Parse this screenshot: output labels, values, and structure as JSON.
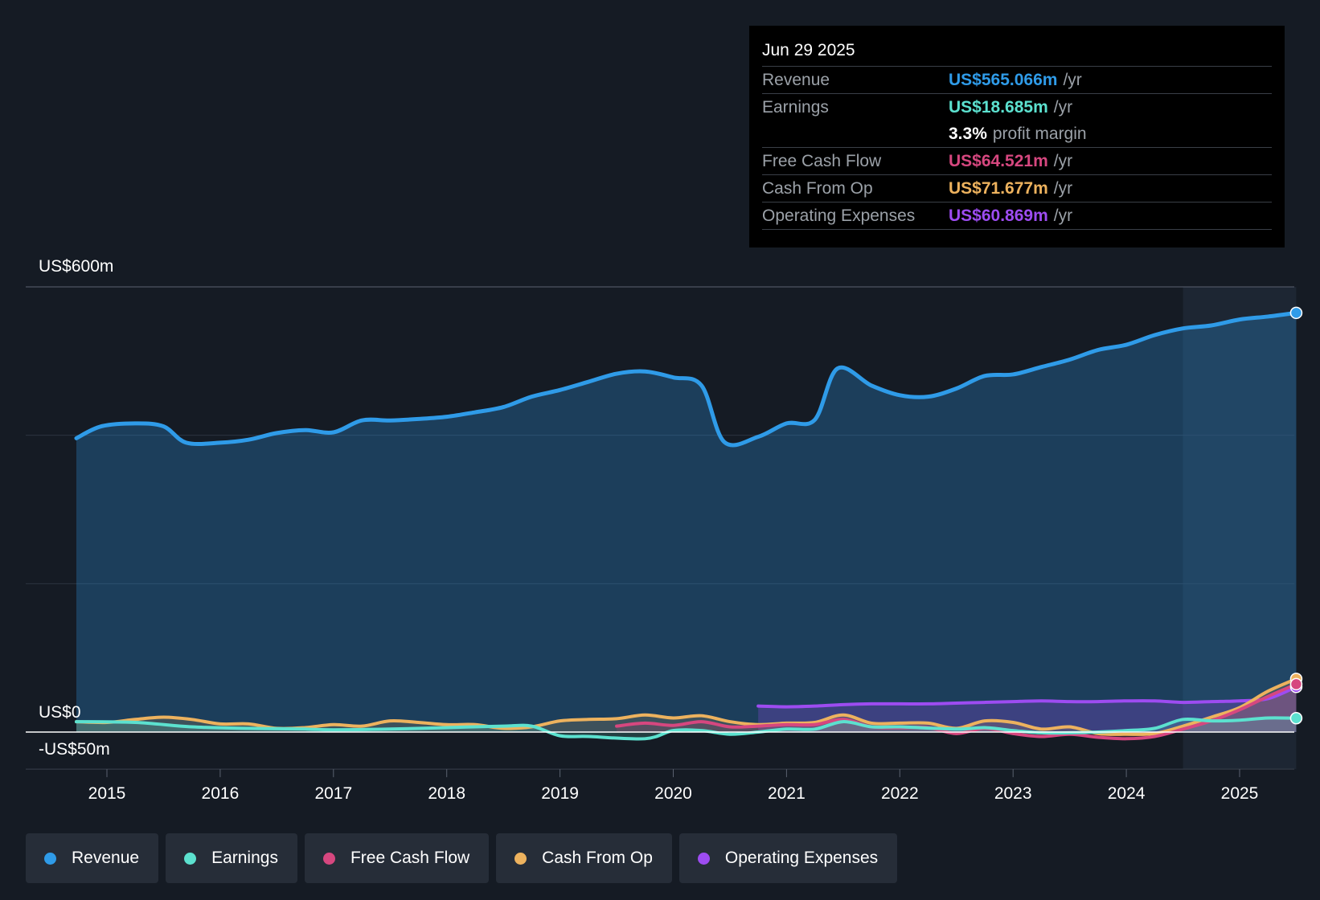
{
  "tooltip": {
    "date": "Jun 29 2025",
    "rows": [
      {
        "label": "Revenue",
        "value": "US$565.066m",
        "unit": "/yr",
        "color": "#2f9be8"
      },
      {
        "label": "Earnings",
        "value": "US$18.685m",
        "unit": "/yr",
        "color": "#5ce1cf"
      },
      {
        "label": "",
        "value": "3.3%",
        "unit": "profit margin",
        "color": "#ffffff"
      },
      {
        "label": "Free Cash Flow",
        "value": "US$64.521m",
        "unit": "/yr",
        "color": "#d6477f"
      },
      {
        "label": "Cash From Op",
        "value": "US$71.677m",
        "unit": "/yr",
        "color": "#edb25e"
      },
      {
        "label": "Operating Expenses",
        "value": "US$60.869m",
        "unit": "/yr",
        "color": "#9d4cf1"
      }
    ]
  },
  "legend": [
    {
      "label": "Revenue",
      "color": "#2f9be8"
    },
    {
      "label": "Earnings",
      "color": "#5ce1cf"
    },
    {
      "label": "Free Cash Flow",
      "color": "#d6477f"
    },
    {
      "label": "Cash From Op",
      "color": "#edb25e"
    },
    {
      "label": "Operating Expenses",
      "color": "#9d4cf1"
    }
  ],
  "chart_data": {
    "type": "line",
    "title": "",
    "y_tick_labels": {
      "top": "US$600m",
      "zero": "US$0",
      "bottom": "-US$50m"
    },
    "ylim": [
      -50,
      600
    ],
    "xlim": [
      2014.73,
      2025.5
    ],
    "forecast_shade_start": 2024.5,
    "x_tick_labels": [
      "2015",
      "2016",
      "2017",
      "2018",
      "2019",
      "2020",
      "2021",
      "2022",
      "2023",
      "2024",
      "2025"
    ],
    "series": [
      {
        "name": "Revenue",
        "color": "#2f9be8",
        "points": [
          [
            2014.73,
            396
          ],
          [
            2014.95,
            412
          ],
          [
            2015.25,
            416
          ],
          [
            2015.5,
            412
          ],
          [
            2015.7,
            390
          ],
          [
            2016.0,
            390
          ],
          [
            2016.25,
            394
          ],
          [
            2016.5,
            403
          ],
          [
            2016.75,
            407
          ],
          [
            2017.0,
            404
          ],
          [
            2017.25,
            420
          ],
          [
            2017.5,
            420
          ],
          [
            2017.75,
            422
          ],
          [
            2018.0,
            425
          ],
          [
            2018.25,
            431
          ],
          [
            2018.5,
            438
          ],
          [
            2018.75,
            452
          ],
          [
            2019.0,
            461
          ],
          [
            2019.25,
            472
          ],
          [
            2019.5,
            483
          ],
          [
            2019.75,
            486
          ],
          [
            2020.0,
            478
          ],
          [
            2020.25,
            467
          ],
          [
            2020.45,
            391
          ],
          [
            2020.75,
            398
          ],
          [
            2021.0,
            416
          ],
          [
            2021.25,
            421
          ],
          [
            2021.45,
            490
          ],
          [
            2021.75,
            467
          ],
          [
            2022.0,
            454
          ],
          [
            2022.25,
            452
          ],
          [
            2022.5,
            463
          ],
          [
            2022.75,
            480
          ],
          [
            2023.0,
            482
          ],
          [
            2023.25,
            492
          ],
          [
            2023.5,
            502
          ],
          [
            2023.75,
            515
          ],
          [
            2024.0,
            522
          ],
          [
            2024.25,
            535
          ],
          [
            2024.5,
            544
          ],
          [
            2024.75,
            548
          ],
          [
            2025.0,
            556
          ],
          [
            2025.25,
            560
          ],
          [
            2025.5,
            565
          ]
        ]
      },
      {
        "name": "Earnings",
        "color": "#5ce1cf",
        "points": [
          [
            2014.73,
            14
          ],
          [
            2015.25,
            13
          ],
          [
            2015.75,
            7
          ],
          [
            2016.25,
            5
          ],
          [
            2016.75,
            4
          ],
          [
            2017.0,
            3
          ],
          [
            2017.5,
            4
          ],
          [
            2018.0,
            6
          ],
          [
            2018.5,
            8
          ],
          [
            2018.75,
            8
          ],
          [
            2019.0,
            -5
          ],
          [
            2019.25,
            -6
          ],
          [
            2019.75,
            -9
          ],
          [
            2020.0,
            2
          ],
          [
            2020.25,
            2
          ],
          [
            2020.5,
            -3
          ],
          [
            2020.75,
            0
          ],
          [
            2021.0,
            4
          ],
          [
            2021.25,
            4
          ],
          [
            2021.5,
            14
          ],
          [
            2021.75,
            7
          ],
          [
            2022.0,
            7
          ],
          [
            2022.5,
            4
          ],
          [
            2022.75,
            6
          ],
          [
            2023.0,
            2
          ],
          [
            2023.25,
            -1
          ],
          [
            2023.5,
            -1
          ],
          [
            2023.75,
            0
          ],
          [
            2024.0,
            2
          ],
          [
            2024.25,
            5
          ],
          [
            2024.5,
            17
          ],
          [
            2024.75,
            15
          ],
          [
            2025.0,
            16
          ],
          [
            2025.25,
            19
          ],
          [
            2025.5,
            18.685
          ]
        ]
      },
      {
        "name": "Free Cash Flow",
        "color": "#d6477f",
        "points": [
          [
            2019.5,
            8
          ],
          [
            2019.75,
            12
          ],
          [
            2020.0,
            9
          ],
          [
            2020.25,
            14
          ],
          [
            2020.5,
            7
          ],
          [
            2020.75,
            8
          ],
          [
            2021.0,
            10
          ],
          [
            2021.25,
            10
          ],
          [
            2021.5,
            17
          ],
          [
            2021.75,
            7
          ],
          [
            2022.0,
            6
          ],
          [
            2022.25,
            6
          ],
          [
            2022.5,
            -2
          ],
          [
            2022.75,
            5
          ],
          [
            2023.0,
            -2
          ],
          [
            2023.25,
            -6
          ],
          [
            2023.5,
            -3
          ],
          [
            2023.75,
            -7
          ],
          [
            2024.0,
            -9
          ],
          [
            2024.25,
            -6
          ],
          [
            2024.5,
            4
          ],
          [
            2024.75,
            15
          ],
          [
            2025.0,
            30
          ],
          [
            2025.25,
            48
          ],
          [
            2025.5,
            64.521
          ]
        ]
      },
      {
        "name": "Cash From Op",
        "color": "#edb25e",
        "points": [
          [
            2014.73,
            14
          ],
          [
            2015.0,
            13
          ],
          [
            2015.25,
            17
          ],
          [
            2015.5,
            20
          ],
          [
            2015.75,
            17
          ],
          [
            2016.0,
            11
          ],
          [
            2016.25,
            11
          ],
          [
            2016.5,
            5
          ],
          [
            2016.75,
            6
          ],
          [
            2017.0,
            10
          ],
          [
            2017.25,
            8
          ],
          [
            2017.5,
            15
          ],
          [
            2017.75,
            13
          ],
          [
            2018.0,
            10
          ],
          [
            2018.25,
            10
          ],
          [
            2018.5,
            5
          ],
          [
            2018.75,
            7
          ],
          [
            2019.0,
            15
          ],
          [
            2019.25,
            17
          ],
          [
            2019.5,
            18
          ],
          [
            2019.75,
            23
          ],
          [
            2020.0,
            19
          ],
          [
            2020.25,
            22
          ],
          [
            2020.5,
            14
          ],
          [
            2020.75,
            10
          ],
          [
            2021.0,
            12
          ],
          [
            2021.25,
            13
          ],
          [
            2021.5,
            23
          ],
          [
            2021.75,
            12
          ],
          [
            2022.0,
            12
          ],
          [
            2022.25,
            12
          ],
          [
            2022.5,
            5
          ],
          [
            2022.75,
            15
          ],
          [
            2023.0,
            13
          ],
          [
            2023.25,
            4
          ],
          [
            2023.5,
            7
          ],
          [
            2023.75,
            -2
          ],
          [
            2024.0,
            -3
          ],
          [
            2024.25,
            -2
          ],
          [
            2024.5,
            8
          ],
          [
            2024.75,
            20
          ],
          [
            2025.0,
            33
          ],
          [
            2025.25,
            55
          ],
          [
            2025.5,
            71.677
          ]
        ]
      },
      {
        "name": "Operating Expenses",
        "color": "#9d4cf1",
        "points": [
          [
            2020.75,
            35
          ],
          [
            2021.0,
            34
          ],
          [
            2021.25,
            35
          ],
          [
            2021.5,
            37
          ],
          [
            2021.75,
            38
          ],
          [
            2022.0,
            38
          ],
          [
            2022.25,
            38
          ],
          [
            2022.5,
            39
          ],
          [
            2022.75,
            40
          ],
          [
            2023.0,
            41
          ],
          [
            2023.25,
            42
          ],
          [
            2023.5,
            41
          ],
          [
            2023.75,
            41
          ],
          [
            2024.0,
            42
          ],
          [
            2024.25,
            42
          ],
          [
            2024.5,
            40
          ],
          [
            2024.75,
            41
          ],
          [
            2025.0,
            42
          ],
          [
            2025.25,
            45
          ],
          [
            2025.5,
            60.869
          ]
        ]
      }
    ]
  }
}
